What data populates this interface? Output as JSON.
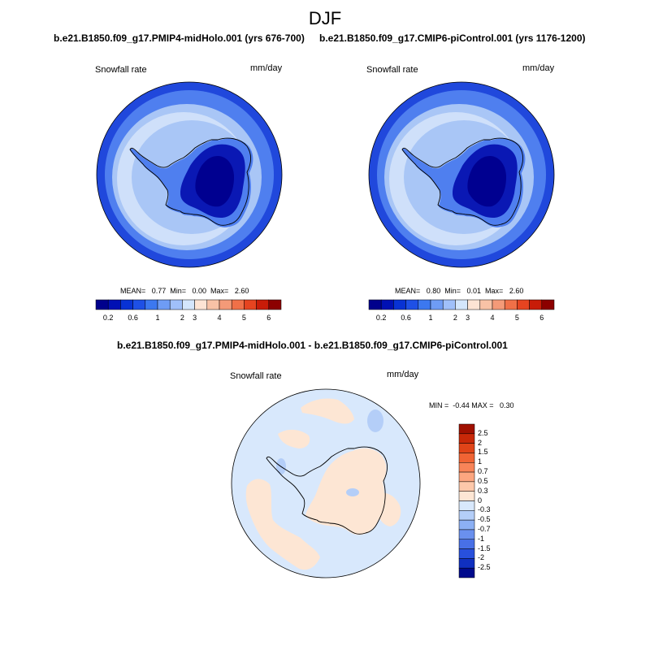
{
  "title": "DJF",
  "panels": [
    {
      "case_title": "b.e21.B1850.f09_g17.PMIP4-midHolo.001 (yrs 676-700)",
      "variable": "Snowfall rate",
      "units": "mm/day",
      "stats": {
        "text": "MEAN=   0.77  Min=   0.00  Max=   2.60",
        "mean": 0.77,
        "min": 0.0,
        "max": 2.6
      }
    },
    {
      "case_title": "b.e21.B1850.f09_g17.CMIP6-piControl.001 (yrs 1176-1200)",
      "variable": "Snowfall rate",
      "units": "mm/day",
      "stats": {
        "text": "MEAN=   0.80  Min=   0.01  Max=   2.60",
        "mean": 0.8,
        "min": 0.01,
        "max": 2.6
      }
    }
  ],
  "abs_colorbar": {
    "tick_labels": [
      "0.2",
      "0.6",
      "1",
      "2",
      "3",
      "4",
      "5",
      "6"
    ],
    "colors": [
      "#00008c",
      "#0010b4",
      "#0832d4",
      "#1e50e6",
      "#3c78f0",
      "#6e9cf5",
      "#a0c0fa",
      "#d4e6fc",
      "#fde4d4",
      "#f8c2a6",
      "#f49a78",
      "#f07048",
      "#e64420",
      "#c81c08",
      "#8c0000"
    ]
  },
  "diff_panel": {
    "case_title": "b.e21.B1850.f09_g17.PMIP4-midHolo.001 - b.e21.B1850.f09_g17.CMIP6-piControl.001",
    "variable": "Snowfall rate",
    "units": "mm/day",
    "stats": {
      "text": "MIN =  -0.44 MAX =   0.30",
      "min": -0.44,
      "max": 0.3
    }
  },
  "diff_colorbar": {
    "tick_labels": [
      "2.5",
      "2",
      "1.5",
      "1",
      "0.7",
      "0.5",
      "0.3",
      "0",
      "-0.3",
      "-0.5",
      "-0.7",
      "-1",
      "-1.5",
      "-2",
      "-2.5"
    ],
    "colors": [
      "#a01000",
      "#c82808",
      "#e04418",
      "#f06434",
      "#f88458",
      "#fca680",
      "#fdc8aa",
      "#fde6d4",
      "#d8e8fc",
      "#b4cef8",
      "#8cb0f4",
      "#6a90ee",
      "#4870e6",
      "#2850dc",
      "#1030c0",
      "#000a8c"
    ]
  },
  "colors": {
    "ocean_light": "#cfe0fa",
    "ocean_mid": "#a9c6f6",
    "coast_band": "#4f7fef",
    "coast_dark": "#2048dc",
    "ice_interior": "#0a18b4",
    "ice_core": "#000090",
    "diff_positive": "#fde6d4",
    "diff_negative": "#d8e8fc",
    "diff_neg_strong": "#b4cef8"
  }
}
